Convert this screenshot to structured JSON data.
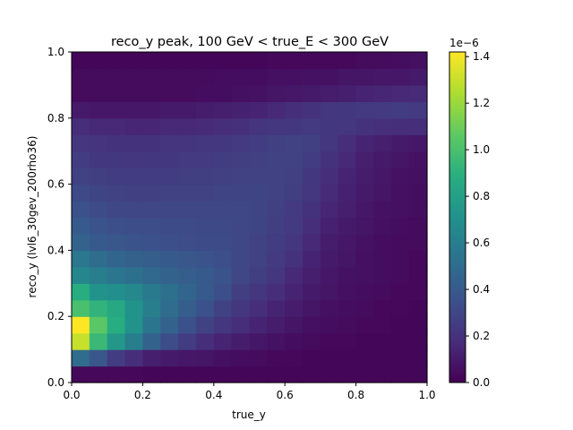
{
  "chart_data": {
    "type": "heatmap",
    "title": "reco_y peak, 100 GeV < true_E < 300 GeV",
    "xlabel": "true_y",
    "ylabel": "reco_y (lvl6_30gev_200rho36)",
    "xlim": [
      0,
      1
    ],
    "ylim": [
      0,
      1
    ],
    "x_ticks": [
      "0.0",
      "0.2",
      "0.4",
      "0.6",
      "0.8",
      "1.0"
    ],
    "y_ticks": [
      "0.0",
      "0.2",
      "0.4",
      "0.6",
      "0.8",
      "1.0"
    ],
    "bins": [
      20,
      20
    ],
    "colormap": "viridis",
    "colorbar": {
      "min": 0.0,
      "max": 1.42,
      "exponent_label": "1e−6",
      "ticks": [
        "0.0",
        "0.2",
        "0.4",
        "0.6",
        "0.8",
        "1.0",
        "1.2",
        "1.4"
      ]
    },
    "z_rows_from_bottom": [
      [
        0.03,
        0.03,
        0.03,
        0.03,
        0.02,
        0.02,
        0.02,
        0.02,
        0.02,
        0.02,
        0.02,
        0.02,
        0.02,
        0.02,
        0.02,
        0.02,
        0.02,
        0.02,
        0.02,
        0.02
      ],
      [
        0.5,
        0.38,
        0.25,
        0.18,
        0.12,
        0.1,
        0.09,
        0.08,
        0.06,
        0.05,
        0.04,
        0.03,
        0.03,
        0.02,
        0.02,
        0.02,
        0.02,
        0.02,
        0.02,
        0.02
      ],
      [
        1.3,
        0.95,
        0.75,
        0.6,
        0.45,
        0.33,
        0.25,
        0.18,
        0.14,
        0.11,
        0.09,
        0.07,
        0.05,
        0.04,
        0.03,
        0.03,
        0.02,
        0.02,
        0.02,
        0.02
      ],
      [
        1.42,
        1.05,
        0.88,
        0.72,
        0.55,
        0.45,
        0.35,
        0.28,
        0.22,
        0.18,
        0.14,
        0.11,
        0.08,
        0.06,
        0.05,
        0.04,
        0.03,
        0.03,
        0.02,
        0.02
      ],
      [
        1.0,
        0.92,
        0.85,
        0.72,
        0.6,
        0.5,
        0.42,
        0.35,
        0.28,
        0.22,
        0.18,
        0.14,
        0.11,
        0.08,
        0.06,
        0.05,
        0.04,
        0.03,
        0.03,
        0.02
      ],
      [
        0.88,
        0.72,
        0.7,
        0.66,
        0.58,
        0.52,
        0.46,
        0.4,
        0.34,
        0.26,
        0.22,
        0.18,
        0.14,
        0.1,
        0.08,
        0.06,
        0.05,
        0.04,
        0.03,
        0.03
      ],
      [
        0.65,
        0.6,
        0.55,
        0.52,
        0.48,
        0.45,
        0.42,
        0.4,
        0.36,
        0.3,
        0.26,
        0.22,
        0.16,
        0.12,
        0.09,
        0.07,
        0.06,
        0.05,
        0.04,
        0.03
      ],
      [
        0.56,
        0.5,
        0.46,
        0.44,
        0.42,
        0.4,
        0.38,
        0.36,
        0.34,
        0.3,
        0.28,
        0.24,
        0.2,
        0.14,
        0.1,
        0.08,
        0.06,
        0.05,
        0.04,
        0.03
      ],
      [
        0.45,
        0.4,
        0.38,
        0.36,
        0.35,
        0.34,
        0.33,
        0.32,
        0.32,
        0.3,
        0.28,
        0.25,
        0.22,
        0.16,
        0.11,
        0.09,
        0.07,
        0.05,
        0.04,
        0.04
      ],
      [
        0.4,
        0.36,
        0.34,
        0.33,
        0.33,
        0.32,
        0.32,
        0.31,
        0.31,
        0.3,
        0.29,
        0.26,
        0.24,
        0.18,
        0.13,
        0.1,
        0.08,
        0.06,
        0.05,
        0.04
      ],
      [
        0.35,
        0.32,
        0.3,
        0.3,
        0.3,
        0.3,
        0.3,
        0.3,
        0.3,
        0.3,
        0.29,
        0.27,
        0.24,
        0.2,
        0.15,
        0.12,
        0.09,
        0.07,
        0.06,
        0.05
      ],
      [
        0.31,
        0.29,
        0.28,
        0.27,
        0.27,
        0.28,
        0.28,
        0.28,
        0.29,
        0.29,
        0.29,
        0.28,
        0.26,
        0.22,
        0.17,
        0.13,
        0.1,
        0.08,
        0.06,
        0.05
      ],
      [
        0.28,
        0.26,
        0.25,
        0.25,
        0.25,
        0.25,
        0.26,
        0.26,
        0.27,
        0.28,
        0.28,
        0.28,
        0.27,
        0.23,
        0.18,
        0.14,
        0.11,
        0.09,
        0.07,
        0.06
      ],
      [
        0.25,
        0.23,
        0.23,
        0.22,
        0.23,
        0.23,
        0.24,
        0.24,
        0.25,
        0.26,
        0.27,
        0.28,
        0.28,
        0.25,
        0.2,
        0.16,
        0.12,
        0.1,
        0.08,
        0.07
      ],
      [
        0.22,
        0.21,
        0.2,
        0.2,
        0.2,
        0.21,
        0.21,
        0.22,
        0.23,
        0.24,
        0.25,
        0.27,
        0.28,
        0.27,
        0.22,
        0.18,
        0.14,
        0.12,
        0.1,
        0.09
      ],
      [
        0.18,
        0.16,
        0.16,
        0.15,
        0.15,
        0.16,
        0.16,
        0.17,
        0.18,
        0.19,
        0.21,
        0.22,
        0.23,
        0.24,
        0.23,
        0.22,
        0.2,
        0.19,
        0.18,
        0.18
      ],
      [
        0.1,
        0.09,
        0.09,
        0.09,
        0.09,
        0.1,
        0.1,
        0.11,
        0.12,
        0.13,
        0.14,
        0.16,
        0.18,
        0.2,
        0.22,
        0.23,
        0.24,
        0.24,
        0.25,
        0.24
      ],
      [
        0.04,
        0.04,
        0.04,
        0.04,
        0.04,
        0.04,
        0.04,
        0.05,
        0.05,
        0.06,
        0.07,
        0.08,
        0.09,
        0.1,
        0.11,
        0.12,
        0.14,
        0.15,
        0.16,
        0.17
      ],
      [
        0.04,
        0.04,
        0.04,
        0.04,
        0.04,
        0.04,
        0.04,
        0.04,
        0.05,
        0.05,
        0.05,
        0.06,
        0.06,
        0.07,
        0.07,
        0.08,
        0.08,
        0.09,
        0.09,
        0.1
      ],
      [
        0.02,
        0.02,
        0.02,
        0.02,
        0.02,
        0.02,
        0.02,
        0.02,
        0.02,
        0.02,
        0.02,
        0.03,
        0.03,
        0.03,
        0.03,
        0.03,
        0.04,
        0.04,
        0.05,
        0.06
      ]
    ]
  }
}
